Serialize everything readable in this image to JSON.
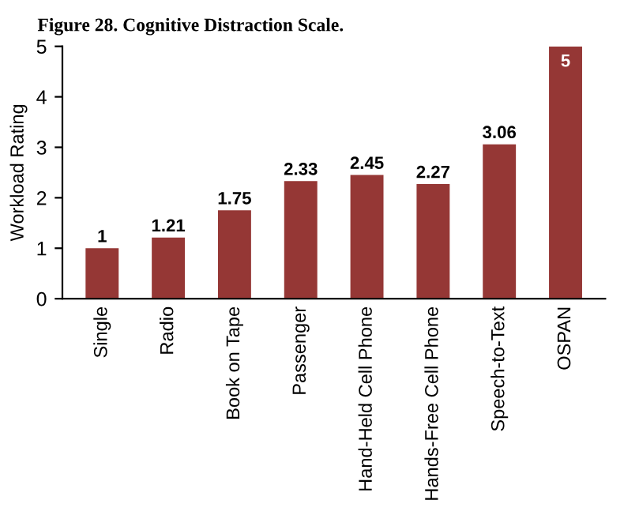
{
  "chart_data": {
    "type": "bar",
    "title": "Figure 28. Cognitive Distraction Scale.",
    "ylabel": "Workload Rating",
    "categories": [
      "Single",
      "Radio",
      "Book on Tape",
      "Passenger",
      "Hand-Held Cell Phone",
      "Hands-Free Cell Phone",
      "Speech-to-Text",
      "OSPAN"
    ],
    "values": [
      1,
      1.21,
      1.75,
      2.33,
      2.45,
      2.27,
      3.06,
      5
    ],
    "color": "#953735",
    "ylim": [
      0,
      5
    ],
    "yticks": [
      0,
      1,
      2,
      3,
      4,
      5
    ],
    "grid": false,
    "data_labels": true
  }
}
